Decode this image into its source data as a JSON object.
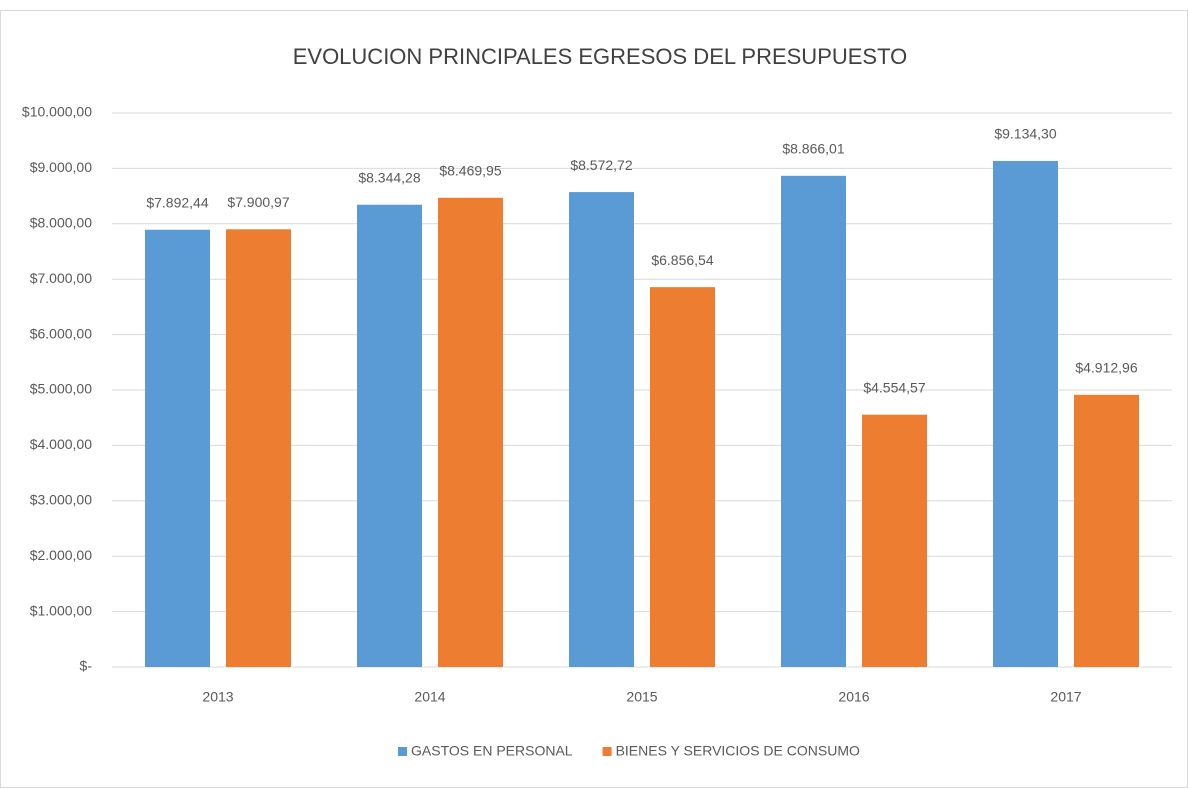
{
  "chart_data": {
    "type": "bar",
    "title": "EVOLUCION PRINCIPALES EGRESOS DEL PRESUPUESTO",
    "categories": [
      "2013",
      "2014",
      "2015",
      "2016",
      "2017"
    ],
    "series": [
      {
        "name": "GASTOS EN PERSONAL",
        "color": "#5b9bd5",
        "values": [
          7892.44,
          8344.28,
          8572.72,
          8866.01,
          9134.3
        ],
        "value_labels": [
          "$7.892,44",
          "$8.344,28",
          "$8.572,72",
          "$8.866,01",
          "$9.134,30"
        ]
      },
      {
        "name": "BIENES Y SERVICIOS DE CONSUMO",
        "color": "#ed7d31",
        "values": [
          7900.97,
          8469.95,
          6856.54,
          4554.57,
          4912.96
        ],
        "value_labels": [
          "$7.900,97",
          "$8.469,95",
          "$6.856,54",
          "$4.554,57",
          "$4.912,96"
        ]
      }
    ],
    "ylim": [
      0,
      10000
    ],
    "yticks": [
      {
        "value": 0,
        "label": "$-"
      },
      {
        "value": 1000,
        "label": "$1.000,00"
      },
      {
        "value": 2000,
        "label": "$2.000,00"
      },
      {
        "value": 3000,
        "label": "$3.000,00"
      },
      {
        "value": 4000,
        "label": "$4.000,00"
      },
      {
        "value": 5000,
        "label": "$5.000,00"
      },
      {
        "value": 6000,
        "label": "$6.000,00"
      },
      {
        "value": 7000,
        "label": "$7.000,00"
      },
      {
        "value": 8000,
        "label": "$8.000,00"
      },
      {
        "value": 9000,
        "label": "$9.000,00"
      },
      {
        "value": 10000,
        "label": "$10.000,00"
      }
    ],
    "grid": true,
    "legend": "bottom"
  }
}
